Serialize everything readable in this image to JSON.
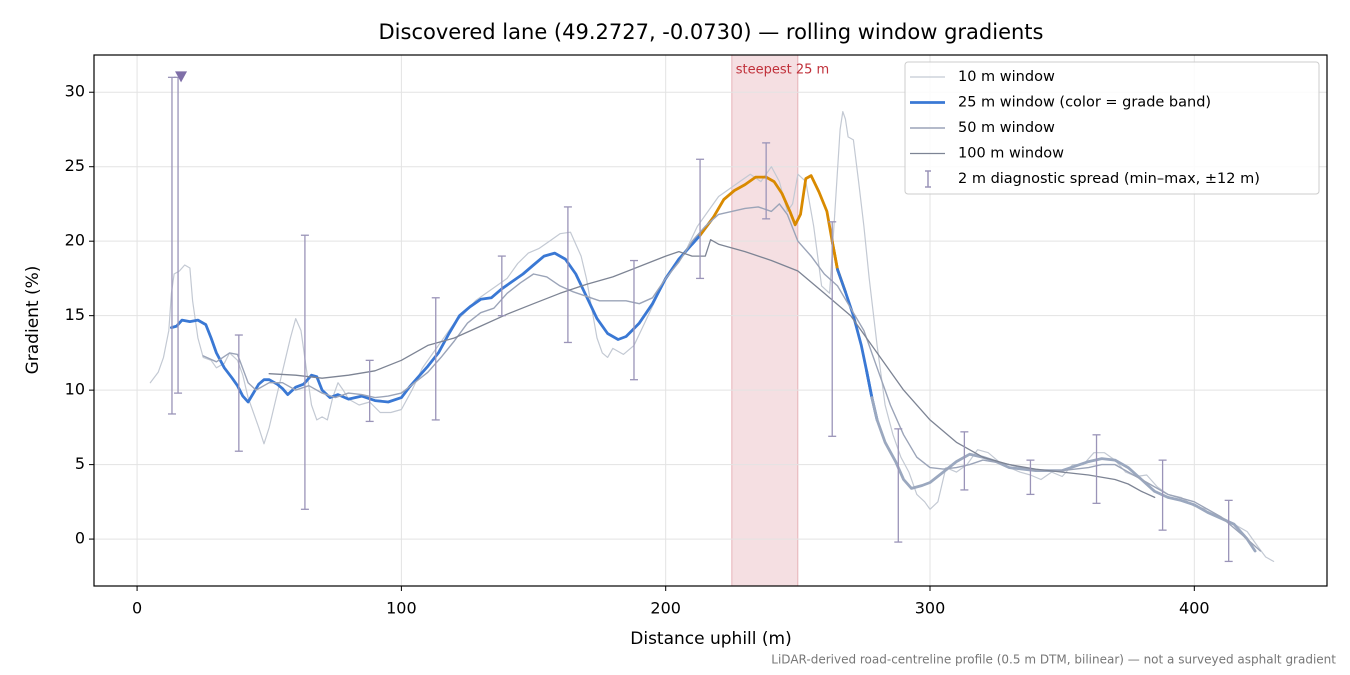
{
  "chart_data": {
    "type": "line",
    "title": "Discovered lane (49.2727, -0.0730) — rolling window gradients",
    "x_label": "Distance uphill (m)",
    "y_label": "Gradient (%)",
    "note": "LiDAR-derived road-centreline profile (0.5 m DTM, bilinear) — not a surveyed asphalt gradient",
    "xlim": [
      -16.3,
      450.2
    ],
    "ylim": [
      -3.15,
      32.5
    ],
    "xticks": [
      0,
      100,
      200,
      300,
      400
    ],
    "yticks": [
      0,
      5,
      10,
      15,
      20,
      25,
      30
    ],
    "grid": true,
    "legend": "upper right",
    "highlight": {
      "label": "steepest 25 m",
      "x": [
        225,
        250
      ],
      "color": "#e8b9bf",
      "label_color": "#c0303a"
    },
    "series": [
      {
        "name": "10 m window",
        "color": "#c3c9d3",
        "width": 1.2,
        "x": [
          5,
          8,
          10,
          12,
          13,
          14,
          16,
          18,
          20,
          21,
          23,
          25,
          28,
          30,
          33,
          35,
          38,
          40,
          42,
          44,
          46,
          48,
          50,
          52,
          54,
          56,
          58,
          60,
          62,
          64,
          66,
          68,
          70,
          72,
          74,
          76,
          78,
          80,
          84,
          88,
          92,
          96,
          100,
          104,
          108,
          112,
          116,
          120,
          124,
          128,
          132,
          136,
          140,
          144,
          148,
          152,
          156,
          160,
          164,
          166,
          168,
          170,
          172,
          174,
          176,
          178,
          180,
          184,
          188,
          192,
          196,
          200,
          204,
          208,
          212,
          216,
          220,
          224,
          228,
          232,
          236,
          240,
          243,
          246,
          248,
          250,
          253,
          256,
          259,
          262,
          264,
          266,
          267,
          268,
          269,
          271,
          273,
          275,
          277,
          280,
          283,
          286,
          289,
          292,
          295,
          298,
          300,
          303,
          306,
          310,
          314,
          318,
          322,
          326,
          330,
          334,
          338,
          342,
          346,
          350,
          354,
          358,
          362,
          366,
          370,
          374,
          378,
          382,
          386,
          390,
          395,
          400,
          405,
          410,
          415,
          420,
          424,
          427,
          430
        ],
        "values": [
          10.5,
          11.2,
          12.2,
          14.0,
          16.5,
          17.8,
          18.0,
          18.4,
          18.2,
          16.0,
          13.5,
          12.2,
          12.0,
          11.5,
          11.8,
          12.5,
          12.0,
          11.0,
          9.5,
          8.5,
          7.5,
          6.4,
          7.5,
          9.0,
          10.5,
          12.0,
          13.5,
          14.8,
          14.0,
          11.5,
          9.0,
          8.0,
          8.2,
          8.0,
          9.5,
          10.5,
          10.0,
          9.4,
          9.0,
          9.2,
          8.5,
          8.5,
          8.7,
          10.0,
          11.5,
          12.5,
          13.5,
          14.5,
          15.2,
          16.0,
          16.5,
          17.0,
          17.5,
          18.5,
          19.2,
          19.5,
          20.0,
          20.5,
          20.6,
          19.8,
          19.0,
          17.5,
          15.5,
          13.5,
          12.5,
          12.2,
          12.8,
          12.4,
          13.0,
          14.5,
          16.0,
          17.5,
          18.5,
          19.5,
          21.0,
          22.0,
          23.0,
          23.5,
          24.0,
          24.5,
          24.0,
          25.0,
          24.0,
          22.0,
          22.5,
          24.5,
          24.0,
          21.0,
          17.0,
          16.5,
          22.0,
          27.5,
          28.7,
          28.2,
          27.0,
          26.8,
          24.0,
          21.0,
          17.5,
          13.0,
          9.0,
          7.0,
          5.5,
          4.5,
          3.0,
          2.5,
          2.0,
          2.5,
          4.8,
          4.5,
          5.0,
          6.0,
          5.8,
          5.2,
          4.8,
          4.5,
          4.3,
          4.0,
          4.5,
          4.2,
          5.0,
          5.0,
          5.8,
          5.8,
          5.3,
          4.5,
          4.2,
          4.3,
          3.5,
          3.0,
          2.8,
          2.2,
          2.0,
          1.5,
          1.0,
          0.5,
          -0.5,
          -1.2,
          -1.5
        ]
      },
      {
        "name": "25 m window (color = grade band)",
        "color": "#3a78d4",
        "width": 2.8,
        "x": [
          13,
          15,
          17,
          20,
          23,
          26,
          28,
          30,
          33,
          36,
          38,
          40,
          42,
          44,
          46,
          48,
          50,
          53,
          55,
          57,
          60,
          63,
          66,
          68,
          70,
          73,
          76,
          80,
          85,
          90,
          95,
          100,
          103,
          106,
          110,
          114,
          118,
          122,
          126,
          130,
          134,
          138,
          142,
          146,
          150,
          154,
          158,
          162,
          166,
          170,
          174,
          178,
          182,
          185,
          190,
          195,
          200,
          205,
          210,
          213,
          218,
          222,
          226,
          230,
          234,
          238,
          241,
          244,
          247,
          249,
          251,
          253,
          255,
          258,
          261,
          263,
          265,
          268,
          271,
          274,
          276,
          278,
          280,
          283,
          287,
          290,
          293,
          297,
          300,
          305,
          310,
          315,
          320,
          325,
          330,
          340,
          350,
          360,
          365,
          370,
          375,
          380,
          385,
          390,
          395,
          400,
          405,
          410,
          415,
          420,
          423
        ],
        "values": [
          14.2,
          14.3,
          14.7,
          14.6,
          14.7,
          14.4,
          13.5,
          12.5,
          11.5,
          10.8,
          10.3,
          9.6,
          9.2,
          9.8,
          10.4,
          10.7,
          10.7,
          10.4,
          10.1,
          9.7,
          10.2,
          10.4,
          11.0,
          10.9,
          10.0,
          9.5,
          9.7,
          9.4,
          9.6,
          9.3,
          9.2,
          9.5,
          10.2,
          10.8,
          11.6,
          12.5,
          13.8,
          15.0,
          15.6,
          16.1,
          16.2,
          16.8,
          17.3,
          17.8,
          18.4,
          19.0,
          19.2,
          18.8,
          17.8,
          16.3,
          14.8,
          13.8,
          13.4,
          13.6,
          14.5,
          15.8,
          17.5,
          18.8,
          19.8,
          20.4,
          21.6,
          22.8,
          23.4,
          23.8,
          24.3,
          24.3,
          24.0,
          23.2,
          22.0,
          21.1,
          21.8,
          24.2,
          24.4,
          23.3,
          22.0,
          20.0,
          18.1,
          16.6,
          15.0,
          13.0,
          11.3,
          9.5,
          8.0,
          6.5,
          5.2,
          4.0,
          3.4,
          3.6,
          3.8,
          4.5,
          5.2,
          5.7,
          5.5,
          5.2,
          4.8,
          4.6,
          4.6,
          5.2,
          5.4,
          5.3,
          4.8,
          4.0,
          3.2,
          2.8,
          2.6,
          2.3,
          1.8,
          1.4,
          1.0,
          0.0,
          -0.8
        ],
        "point_colors": [
          "#3a78d4",
          "#3a78d4",
          "#3a78d4",
          "#3a78d4",
          "#3a78d4",
          "#3a78d4",
          "#3a78d4",
          "#3a78d4",
          "#3a78d4",
          "#3a78d4",
          "#3a78d4",
          "#3a78d4",
          "#3a78d4",
          "#3a78d4",
          "#3a78d4",
          "#3a78d4",
          "#3a78d4",
          "#3a78d4",
          "#3a78d4",
          "#3a78d4",
          "#3a78d4",
          "#3a78d4",
          "#3a78d4",
          "#3a78d4",
          "#3a78d4",
          "#3a78d4",
          "#3a78d4",
          "#3a78d4",
          "#3a78d4",
          "#3a78d4",
          "#3a78d4",
          "#3a78d4",
          "#3a78d4",
          "#3a78d4",
          "#3a78d4",
          "#3a78d4",
          "#3a78d4",
          "#3a78d4",
          "#3a78d4",
          "#3a78d4",
          "#3a78d4",
          "#3a78d4",
          "#3a78d4",
          "#3a78d4",
          "#3a78d4",
          "#3a78d4",
          "#3a78d4",
          "#3a78d4",
          "#3a78d4",
          "#3a78d4",
          "#3a78d4",
          "#3a78d4",
          "#3a78d4",
          "#3a78d4",
          "#3a78d4",
          "#3a78d4",
          "#3a78d4",
          "#3a78d4",
          "#3a78d4",
          "#d98a00",
          "#d98a00",
          "#d98a00",
          "#d98a00",
          "#d98a00",
          "#d98a00",
          "#d98a00",
          "#d98a00",
          "#d98a00",
          "#d98a00",
          "#d98a00",
          "#d98a00",
          "#d98a00",
          "#d98a00",
          "#d98a00",
          "#d98a00",
          "#d98a00",
          "#3a78d4",
          "#3a78d4",
          "#3a78d4",
          "#3a78d4",
          "#3a78d4",
          "#9ba8bf",
          "#9ba8bf",
          "#9ba8bf",
          "#9ba8bf",
          "#9ba8bf",
          "#9ba8bf",
          "#9ba8bf",
          "#9ba8bf",
          "#9ba8bf",
          "#9ba8bf",
          "#9ba8bf",
          "#9ba8bf",
          "#9ba8bf",
          "#9ba8bf",
          "#9ba8bf",
          "#9ba8bf",
          "#9ba8bf",
          "#9ba8bf",
          "#9ba8bf",
          "#9ba8bf",
          "#9ba8bf",
          "#9ba8bf",
          "#9ba8bf",
          "#9ba8bf",
          "#9ba8bf",
          "#9ba8bf",
          "#9ba8bf",
          "#9ba8bf",
          "#9ba8bf",
          "#9ba8bf"
        ]
      },
      {
        "name": "50 m window",
        "color": "#9ba4b8",
        "width": 1.4,
        "x": [
          25,
          30,
          35,
          38,
          42,
          45,
          50,
          55,
          60,
          65,
          70,
          75,
          80,
          85,
          90,
          95,
          100,
          105,
          110,
          115,
          120,
          125,
          130,
          135,
          140,
          145,
          150,
          155,
          160,
          165,
          170,
          175,
          180,
          185,
          190,
          195,
          200,
          205,
          210,
          215,
          220,
          225,
          230,
          235,
          240,
          243,
          246,
          250,
          255,
          260,
          265,
          270,
          275,
          280,
          285,
          290,
          295,
          300,
          305,
          310,
          315,
          320,
          330,
          340,
          350,
          360,
          365,
          370,
          380,
          390,
          400,
          410,
          420,
          425
        ],
        "values": [
          12.3,
          11.9,
          12.5,
          12.4,
          10.5,
          10.0,
          10.5,
          10.5,
          10.0,
          10.3,
          9.8,
          9.5,
          9.8,
          9.7,
          9.5,
          9.6,
          9.8,
          10.5,
          11.2,
          12.2,
          13.3,
          14.5,
          15.2,
          15.5,
          16.5,
          17.2,
          17.8,
          17.6,
          17.0,
          16.6,
          16.3,
          16.0,
          16.0,
          16.0,
          15.8,
          16.2,
          17.5,
          18.6,
          20.0,
          21.0,
          21.8,
          22.0,
          22.2,
          22.3,
          22.0,
          22.5,
          21.8,
          20.0,
          19.0,
          17.8,
          17.0,
          15.5,
          14.0,
          11.5,
          9.0,
          7.0,
          5.5,
          4.8,
          4.7,
          4.8,
          5.0,
          5.3,
          5.0,
          4.6,
          4.6,
          4.8,
          5.0,
          5.0,
          4.0,
          3.0,
          2.5,
          1.5,
          0.0,
          -0.8
        ]
      },
      {
        "name": "100 m window",
        "color": "#7d8494",
        "width": 1.3,
        "x": [
          50,
          60,
          70,
          80,
          90,
          100,
          110,
          120,
          130,
          140,
          150,
          160,
          170,
          180,
          190,
          200,
          205,
          210,
          215,
          217,
          220,
          230,
          240,
          250,
          260,
          270,
          280,
          290,
          300,
          310,
          320,
          330,
          340,
          350,
          360,
          370,
          375,
          380,
          385
        ],
        "values": [
          11.1,
          11.0,
          10.8,
          11.0,
          11.3,
          12.0,
          13.0,
          13.5,
          14.3,
          15.1,
          15.8,
          16.5,
          17.1,
          17.6,
          18.3,
          19.0,
          19.3,
          19.0,
          19.0,
          20.1,
          19.8,
          19.3,
          18.7,
          18.0,
          16.5,
          15.0,
          12.5,
          10.0,
          8.0,
          6.5,
          5.5,
          5.0,
          4.7,
          4.5,
          4.3,
          4.0,
          3.7,
          3.2,
          2.8
        ]
      }
    ],
    "errorbars": {
      "name": "2 m diagnostic spread (min–max, ±12 m)",
      "color": "#9a94b8",
      "x": [
        13.2,
        15.5,
        38.5,
        63.5,
        88,
        113,
        138,
        163,
        188,
        213,
        238,
        263,
        288,
        313,
        338,
        363,
        388,
        413
      ],
      "low": [
        8.4,
        9.8,
        5.9,
        2.0,
        7.9,
        8.0,
        15.0,
        13.2,
        10.7,
        17.5,
        21.5,
        6.9,
        -0.2,
        3.3,
        3.0,
        2.4,
        0.6,
        -1.5
      ],
      "high": [
        31.0,
        31.0,
        13.7,
        20.4,
        12.0,
        16.2,
        19.0,
        22.3,
        18.7,
        25.5,
        26.6,
        21.3,
        7.4,
        7.2,
        5.3,
        7.0,
        5.3,
        2.6
      ]
    }
  }
}
